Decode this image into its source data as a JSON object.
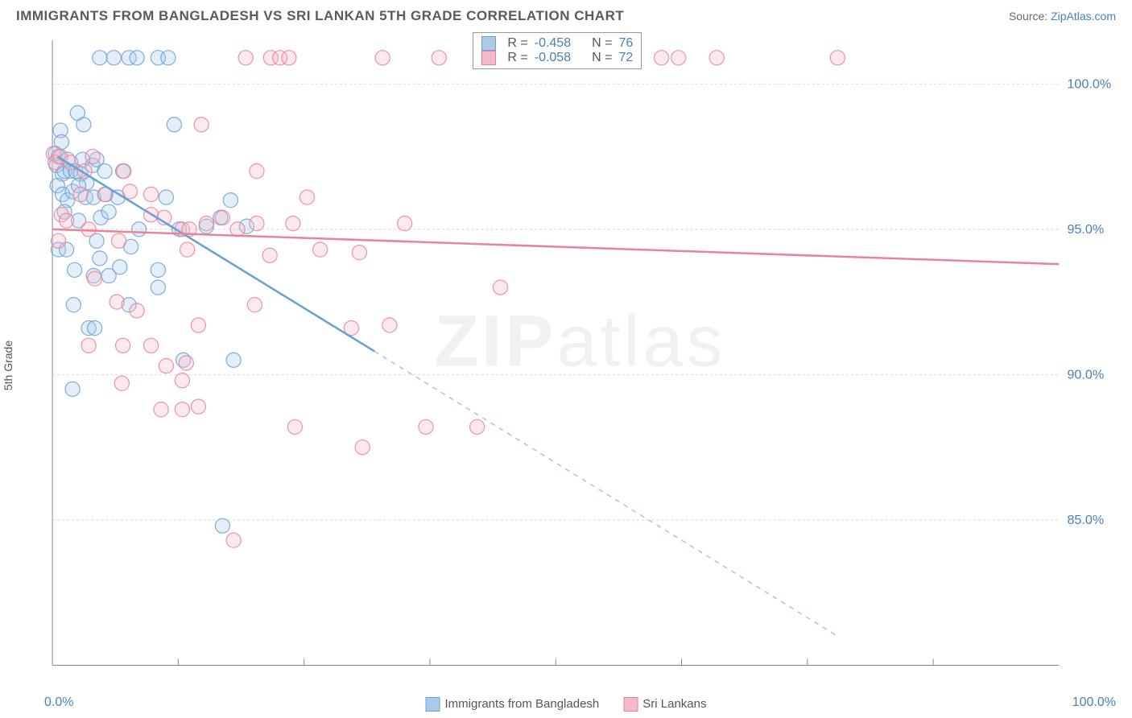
{
  "title": "IMMIGRANTS FROM BANGLADESH VS SRI LANKAN 5TH GRADE CORRELATION CHART",
  "source_label": "Source: ",
  "source_link": "ZipAtlas.com",
  "ylabel": "5th Grade",
  "watermark_zip": "ZIP",
  "watermark_atlas": "atlas",
  "chart": {
    "type": "scatter",
    "xlim": [
      0,
      100
    ],
    "ylim": [
      80,
      101.5
    ],
    "xticks": [
      0,
      100
    ],
    "xtick_labels": [
      "0.0%",
      "100.0%"
    ],
    "xtick_minor": [
      12.5,
      25,
      37.5,
      50,
      62.5,
      75,
      87.5
    ],
    "yticks": [
      85,
      90,
      95,
      100
    ],
    "ytick_labels": [
      "85.0%",
      "90.0%",
      "95.0%",
      "100.0%"
    ],
    "grid_color": "#d8d8d8",
    "border_color": "#888888",
    "background": "#ffffff",
    "marker_radius": 9,
    "marker_opacity": 0.32,
    "marker_stroke_opacity": 0.85,
    "series": [
      {
        "name": "Immigrants from Bangladesh",
        "color": "#6aa0d8",
        "fill": "#a9cbe8",
        "R": "-0.458",
        "N": "76",
        "trend": {
          "x1": 0.5,
          "y1": 97.5,
          "x2": 32,
          "y2": 90.8,
          "x2_ext": 78,
          "y2_ext": 81
        },
        "points": [
          [
            4.7,
            100.9
          ],
          [
            6.1,
            100.9
          ],
          [
            7.6,
            100.9
          ],
          [
            8.4,
            100.9
          ],
          [
            10.5,
            100.9
          ],
          [
            11.5,
            100.9
          ],
          [
            2.5,
            99.0
          ],
          [
            0.8,
            98.4
          ],
          [
            0.9,
            98.0
          ],
          [
            3.1,
            98.6
          ],
          [
            12.1,
            98.6
          ],
          [
            0.3,
            97.6
          ],
          [
            0.6,
            97.5
          ],
          [
            0.4,
            97.2
          ],
          [
            1.0,
            96.9
          ],
          [
            1.2,
            97.0
          ],
          [
            1.5,
            97.4
          ],
          [
            1.8,
            97.0
          ],
          [
            2.3,
            97.0
          ],
          [
            2.8,
            96.9
          ],
          [
            3.0,
            97.4
          ],
          [
            3.4,
            96.6
          ],
          [
            4.0,
            97.2
          ],
          [
            4.4,
            97.4
          ],
          [
            5.2,
            97.0
          ],
          [
            7.0,
            97.0
          ],
          [
            0.5,
            96.5
          ],
          [
            1.0,
            96.2
          ],
          [
            1.5,
            96.0
          ],
          [
            2.0,
            96.3
          ],
          [
            2.6,
            96.5
          ],
          [
            3.3,
            96.1
          ],
          [
            4.1,
            96.1
          ],
          [
            5.3,
            96.2
          ],
          [
            6.5,
            96.1
          ],
          [
            11.3,
            96.1
          ],
          [
            17.7,
            96.0
          ],
          [
            1.2,
            95.6
          ],
          [
            2.6,
            95.3
          ],
          [
            4.8,
            95.4
          ],
          [
            5.6,
            95.6
          ],
          [
            8.6,
            95.0
          ],
          [
            12.6,
            95.0
          ],
          [
            15.3,
            95.1
          ],
          [
            16.7,
            95.4
          ],
          [
            19.3,
            95.1
          ],
          [
            0.6,
            94.3
          ],
          [
            1.4,
            94.3
          ],
          [
            4.4,
            94.6
          ],
          [
            4.7,
            94.0
          ],
          [
            7.8,
            94.4
          ],
          [
            2.2,
            93.6
          ],
          [
            4.1,
            93.4
          ],
          [
            5.6,
            93.4
          ],
          [
            6.7,
            93.7
          ],
          [
            10.5,
            93.6
          ],
          [
            10.5,
            93.0
          ],
          [
            2.1,
            92.4
          ],
          [
            7.6,
            92.4
          ],
          [
            3.6,
            91.6
          ],
          [
            4.2,
            91.6
          ],
          [
            13.0,
            90.5
          ],
          [
            18.0,
            90.5
          ],
          [
            2.0,
            89.5
          ],
          [
            16.9,
            84.8
          ]
        ]
      },
      {
        "name": "Sri Lankans",
        "color": "#e8839b",
        "fill": "#f5bac8",
        "R": "-0.058",
        "N": "72",
        "trend": {
          "x1": 0,
          "y1": 95.0,
          "x2": 100,
          "y2": 93.8
        },
        "points": [
          [
            19.2,
            100.9
          ],
          [
            21.7,
            100.9
          ],
          [
            22.6,
            100.9
          ],
          [
            23.5,
            100.9
          ],
          [
            32.8,
            100.9
          ],
          [
            38.4,
            100.9
          ],
          [
            43.5,
            100.9
          ],
          [
            60.5,
            100.9
          ],
          [
            62.2,
            100.9
          ],
          [
            66.0,
            100.9
          ],
          [
            78.0,
            100.9
          ],
          [
            14.8,
            98.6
          ],
          [
            0.1,
            97.6
          ],
          [
            0.3,
            97.3
          ],
          [
            0.8,
            97.5
          ],
          [
            1.8,
            97.3
          ],
          [
            3.2,
            97.0
          ],
          [
            4.0,
            97.5
          ],
          [
            7.1,
            97.0
          ],
          [
            20.3,
            97.0
          ],
          [
            2.8,
            96.2
          ],
          [
            5.2,
            96.2
          ],
          [
            7.7,
            96.3
          ],
          [
            9.8,
            96.2
          ],
          [
            25.3,
            96.1
          ],
          [
            0.9,
            95.5
          ],
          [
            1.4,
            95.3
          ],
          [
            3.6,
            95.0
          ],
          [
            9.8,
            95.5
          ],
          [
            11.1,
            95.4
          ],
          [
            12.9,
            95.0
          ],
          [
            13.6,
            95.0
          ],
          [
            15.3,
            95.2
          ],
          [
            16.9,
            95.4
          ],
          [
            18.4,
            95.0
          ],
          [
            20.3,
            95.2
          ],
          [
            23.9,
            95.2
          ],
          [
            35.0,
            95.2
          ],
          [
            0.6,
            94.6
          ],
          [
            6.6,
            94.6
          ],
          [
            13.4,
            94.3
          ],
          [
            21.6,
            94.1
          ],
          [
            26.6,
            94.3
          ],
          [
            30.5,
            94.2
          ],
          [
            4.2,
            93.3
          ],
          [
            44.5,
            93.0
          ],
          [
            6.4,
            92.5
          ],
          [
            8.4,
            92.2
          ],
          [
            20.1,
            92.4
          ],
          [
            14.5,
            91.7
          ],
          [
            29.7,
            91.6
          ],
          [
            33.5,
            91.7
          ],
          [
            3.6,
            91.0
          ],
          [
            7.0,
            91.0
          ],
          [
            9.8,
            91.0
          ],
          [
            11.3,
            90.3
          ],
          [
            13.3,
            90.4
          ],
          [
            6.9,
            89.7
          ],
          [
            12.9,
            89.8
          ],
          [
            10.8,
            88.8
          ],
          [
            12.9,
            88.8
          ],
          [
            14.5,
            88.9
          ],
          [
            24.1,
            88.2
          ],
          [
            37.1,
            88.2
          ],
          [
            42.2,
            88.2
          ],
          [
            30.8,
            87.5
          ],
          [
            18.0,
            84.3
          ]
        ]
      }
    ]
  },
  "legend_top": {
    "rows": [
      {
        "swatch": 0,
        "R_lbl": "R",
        "R_val": "-0.458",
        "N_lbl": "N",
        "N_val": "76"
      },
      {
        "swatch": 1,
        "R_lbl": "R",
        "R_val": "-0.058",
        "N_lbl": "N",
        "N_val": "72"
      }
    ]
  },
  "legend_bottom": [
    {
      "swatch": 0,
      "label": "Immigrants from Bangladesh"
    },
    {
      "swatch": 1,
      "label": "Sri Lankans"
    }
  ]
}
